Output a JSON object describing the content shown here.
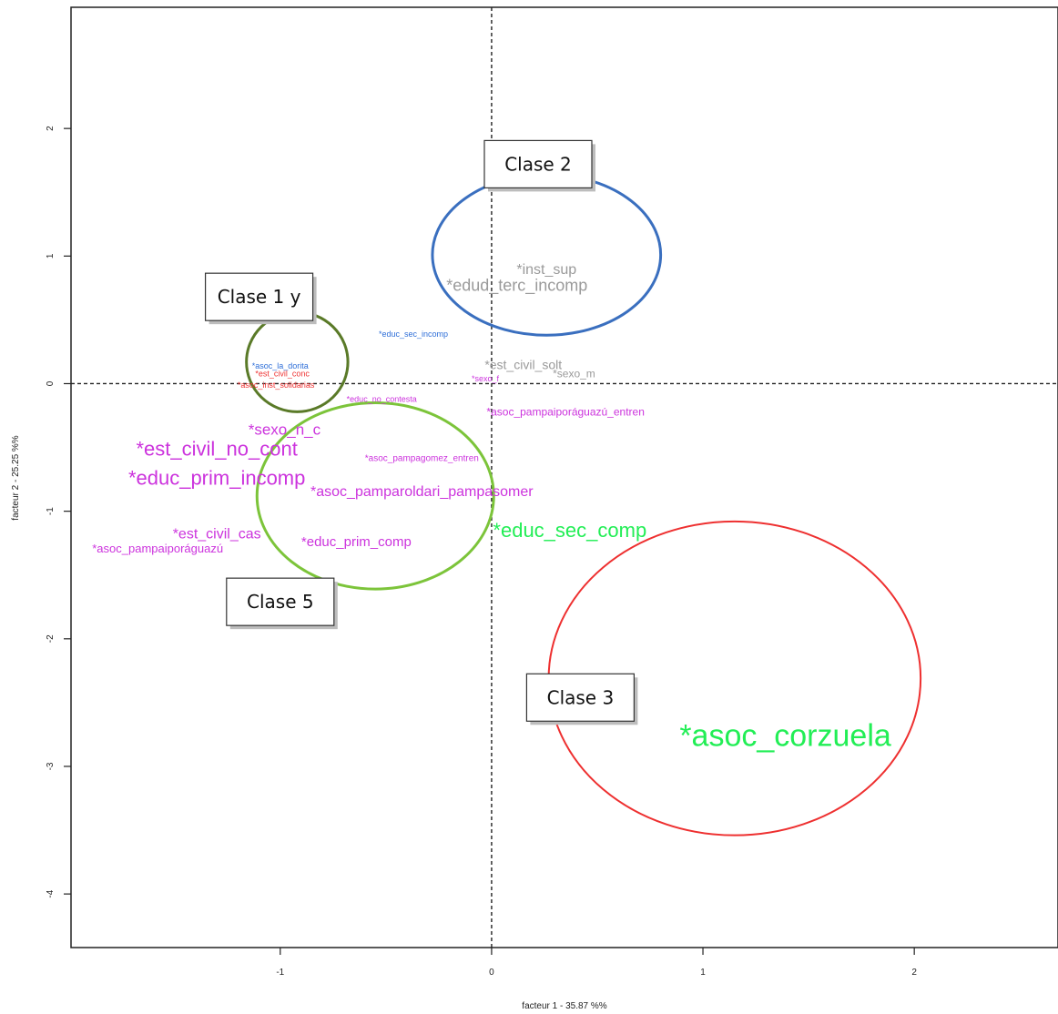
{
  "chart_data": {
    "type": "scatter",
    "xlabel": "facteur  1 - 35.87 %%",
    "ylabel": "facteur  2 - 25.25 %%",
    "xlim": [
      -1.99,
      2.68
    ],
    "ylim": [
      -4.42,
      2.95
    ],
    "x_ticks": [
      -1,
      0,
      1,
      2
    ],
    "y_ticks": [
      -4,
      -3,
      -2,
      -1,
      0,
      1,
      2
    ],
    "x_tick_labels": [
      "-1",
      "0",
      "1",
      "2"
    ],
    "y_tick_labels": [
      "-4",
      "-3",
      "-2",
      "-1",
      "0",
      "1",
      "2"
    ],
    "reference_lines": {
      "x": 0,
      "y": 0,
      "style": "dashed"
    },
    "points": [
      {
        "label": "*inst_sup",
        "x": 0.26,
        "y": 0.89,
        "color": "#9a9a9a",
        "size": 16
      },
      {
        "label": "*edud_terc_incomp",
        "x": 0.12,
        "y": 0.77,
        "color": "#9a9a9a",
        "size": 18
      },
      {
        "label": "*educ_sec_incomp",
        "x": -0.37,
        "y": 0.39,
        "color": "#2f6fd8",
        "size": 9
      },
      {
        "label": "*est_civil_solt",
        "x": 0.15,
        "y": 0.15,
        "color": "#9a9a9a",
        "size": 14
      },
      {
        "label": "*sexo_m",
        "x": 0.39,
        "y": 0.08,
        "color": "#9a9a9a",
        "size": 12
      },
      {
        "label": "*sexo_f",
        "x": -0.03,
        "y": 0.04,
        "color": "#cc33dd",
        "size": 9
      },
      {
        "label": "*asoc_la_dorita",
        "x": -1.0,
        "y": 0.14,
        "color": "#2f6fd8",
        "size": 9
      },
      {
        "label": "*est_civil_conc",
        "x": -0.99,
        "y": 0.08,
        "color": "#ee3333",
        "size": 9
      },
      {
        "label": "*asoc_inst_solidarias",
        "x": -1.02,
        "y": -0.01,
        "color": "#ee3333",
        "size": 9
      },
      {
        "label": "*educ_no_contesta",
        "x": -0.52,
        "y": -0.12,
        "color": "#cc33dd",
        "size": 9
      },
      {
        "label": "*asoc_pampaiporáguazú_entren",
        "x": 0.35,
        "y": -0.22,
        "color": "#cc33dd",
        "size": 12
      },
      {
        "label": "*sexo_n_c",
        "x": -0.98,
        "y": -0.36,
        "color": "#cc33dd",
        "size": 17
      },
      {
        "label": "*est_civil_no_cont",
        "x": -1.3,
        "y": -0.51,
        "color": "#cc33dd",
        "size": 22
      },
      {
        "label": "*asoc_pampagomez_entren",
        "x": -0.33,
        "y": -0.59,
        "color": "#cc33dd",
        "size": 10
      },
      {
        "label": "*educ_prim_incomp",
        "x": -1.3,
        "y": -0.74,
        "color": "#cc33dd",
        "size": 22
      },
      {
        "label": "*asoc_pamparoldari_pampasomer",
        "x": -0.33,
        "y": -0.85,
        "color": "#cc33dd",
        "size": 16
      },
      {
        "label": "*educ_sec_comp",
        "x": 0.37,
        "y": -1.15,
        "color": "#22ee55",
        "size": 22
      },
      {
        "label": "*est_civil_cas",
        "x": -1.3,
        "y": -1.18,
        "color": "#cc33dd",
        "size": 16
      },
      {
        "label": "*educ_prim_comp",
        "x": -0.64,
        "y": -1.24,
        "color": "#cc33dd",
        "size": 15
      },
      {
        "label": "*asoc_pampaiporáguazú",
        "x": -1.58,
        "y": -1.29,
        "color": "#cc33dd",
        "size": 13
      },
      {
        "label": "*asoc_corzuela",
        "x": 1.39,
        "y": -2.76,
        "color": "#22ee55",
        "size": 34
      }
    ],
    "clusters": [
      {
        "cx": 0.26,
        "cy": 1.01,
        "rx": 0.54,
        "ry": 0.63,
        "color": "#3a6fbf",
        "width": 3
      },
      {
        "cx": -0.92,
        "cy": 0.17,
        "rx": 0.24,
        "ry": 0.39,
        "color": "#5a7a28",
        "width": 3
      },
      {
        "cx": -0.55,
        "cy": -0.88,
        "rx": 0.56,
        "ry": 0.73,
        "color": "#7cc43a",
        "width": 3
      },
      {
        "cx": 1.15,
        "cy": -2.31,
        "rx": 0.88,
        "ry": 1.23,
        "color": "#ee3030",
        "width": 2
      }
    ],
    "annotations": [
      {
        "text": "Clase 2",
        "x": 0.22,
        "y": 1.72
      },
      {
        "text": "Clase 1 y",
        "x": -1.1,
        "y": 0.68
      },
      {
        "text": "Clase 5",
        "x": -1.0,
        "y": -1.71
      },
      {
        "text": "Clase 3",
        "x": 0.42,
        "y": -2.46
      }
    ]
  }
}
